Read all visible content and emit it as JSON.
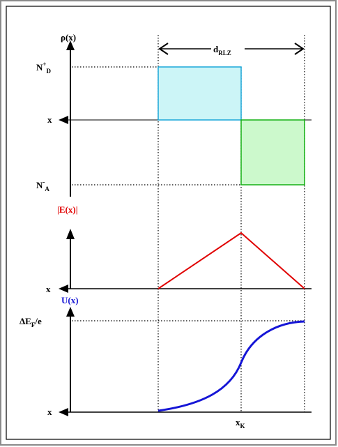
{
  "colors": {
    "frame_outer": "#8a8a8a",
    "frame_inner": "#000000",
    "donor_fill": "#ccf5f7",
    "donor_stroke": "#19a7d9",
    "acceptor_fill": "#ccf9cc",
    "acceptor_stroke": "#13b013",
    "field_line": "#e00000",
    "potential_line": "#1515d6",
    "axis": "#000000"
  },
  "labels": {
    "rho_axis": {
      "main": "ρ(x)"
    },
    "width": {
      "main": "d",
      "sub": "RLZ"
    },
    "donor": {
      "main": "N",
      "sup": "+",
      "sub": "D"
    },
    "acceptor": {
      "main": "N",
      "sup": "-",
      "sub": "A"
    },
    "x_rho": "x",
    "field_axis": "|E(x)|",
    "x_field": "x",
    "potential_axis": "U(x)",
    "delta_ef": {
      "main": "ΔE",
      "sub": "F",
      "tail": "/e"
    },
    "x_potential": "x",
    "xk": {
      "main": "x",
      "sub": "K"
    }
  },
  "icons": {
    "axis_arrow_up": "arrow-up-icon",
    "axis_arrow_left": "arrow-left-icon",
    "dimension_arrows": "double-arrow-icon"
  }
}
